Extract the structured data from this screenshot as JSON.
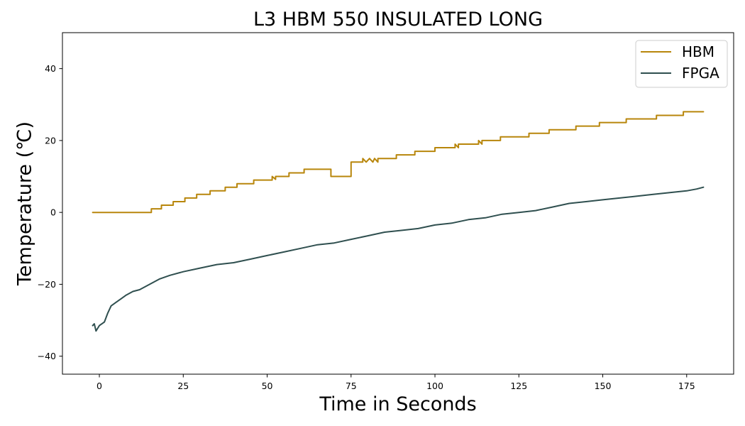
{
  "chart_data": {
    "type": "line",
    "title": "L3 HBM 550 INSULATED LONG",
    "xlabel": "Time in Seconds",
    "ylabel": "Temperature (℃)",
    "xlim": [
      -11,
      189
    ],
    "ylim": [
      -45,
      50
    ],
    "xticks": [
      0,
      25,
      50,
      75,
      100,
      125,
      150,
      175
    ],
    "yticks": [
      -40,
      -20,
      0,
      20,
      40
    ],
    "grid": false,
    "legend_position": "top-right",
    "series": [
      {
        "name": "HBM",
        "color": "#b8860b",
        "x": [
          -2,
          15.5,
          15.5,
          18.5,
          18.5,
          22,
          22,
          25.5,
          25.5,
          29,
          29,
          33,
          33,
          37.5,
          37.5,
          41,
          41,
          46,
          46,
          51.5,
          51.5,
          52.5,
          52.5,
          56.5,
          56.5,
          61,
          61,
          69,
          69,
          75,
          75,
          78.5,
          78.5,
          79.5,
          80.5,
          81.5,
          82,
          83,
          83,
          88.5,
          88.5,
          94,
          94,
          100,
          100,
          106,
          106,
          107,
          107,
          113,
          113,
          114,
          114,
          119.5,
          119.5,
          121,
          121,
          128,
          128,
          134,
          134,
          142,
          142,
          149,
          149,
          157,
          157,
          166,
          166,
          174,
          174,
          180
        ],
        "y": [
          0,
          0,
          1,
          1,
          2,
          2,
          3,
          3,
          4,
          4,
          5,
          5,
          6,
          6,
          7,
          7,
          8,
          8,
          9,
          9,
          10,
          9.2,
          10,
          10,
          11,
          11,
          12,
          12,
          10,
          10,
          14,
          14,
          15,
          14,
          15,
          14,
          15,
          14,
          15,
          15,
          16,
          16,
          17,
          17,
          18,
          18,
          19,
          18,
          19,
          19,
          20,
          19,
          20,
          20,
          21,
          21,
          21,
          21,
          22,
          22,
          23,
          23,
          24,
          24,
          25,
          25,
          26,
          26,
          27,
          27,
          28,
          28
        ]
      },
      {
        "name": "FPGA",
        "color": "#2f4f4f",
        "x": [
          -2,
          -1.5,
          -1,
          0,
          1.5,
          2.5,
          3.5,
          5,
          6.5,
          8,
          10,
          12,
          15,
          18,
          21,
          25,
          30,
          35,
          40,
          45,
          50,
          55,
          60,
          65,
          70,
          75,
          80,
          85,
          90,
          95,
          100,
          105,
          110,
          115,
          120,
          125,
          130,
          135,
          140,
          145,
          150,
          155,
          160,
          165,
          170,
          175,
          178,
          180
        ],
        "y": [
          -31.5,
          -31,
          -33,
          -31.5,
          -30.5,
          -28,
          -26,
          -25,
          -24,
          -23,
          -22,
          -21.5,
          -20,
          -18.5,
          -17.5,
          -16.5,
          -15.5,
          -14.5,
          -14,
          -13,
          -12,
          -11,
          -10,
          -9,
          -8.5,
          -7.5,
          -6.5,
          -5.5,
          -5,
          -4.5,
          -3.5,
          -3,
          -2,
          -1.5,
          -0.5,
          0,
          0.5,
          1.5,
          2.5,
          3,
          3.5,
          4,
          4.5,
          5,
          5.5,
          6,
          6.5,
          7
        ]
      }
    ]
  }
}
